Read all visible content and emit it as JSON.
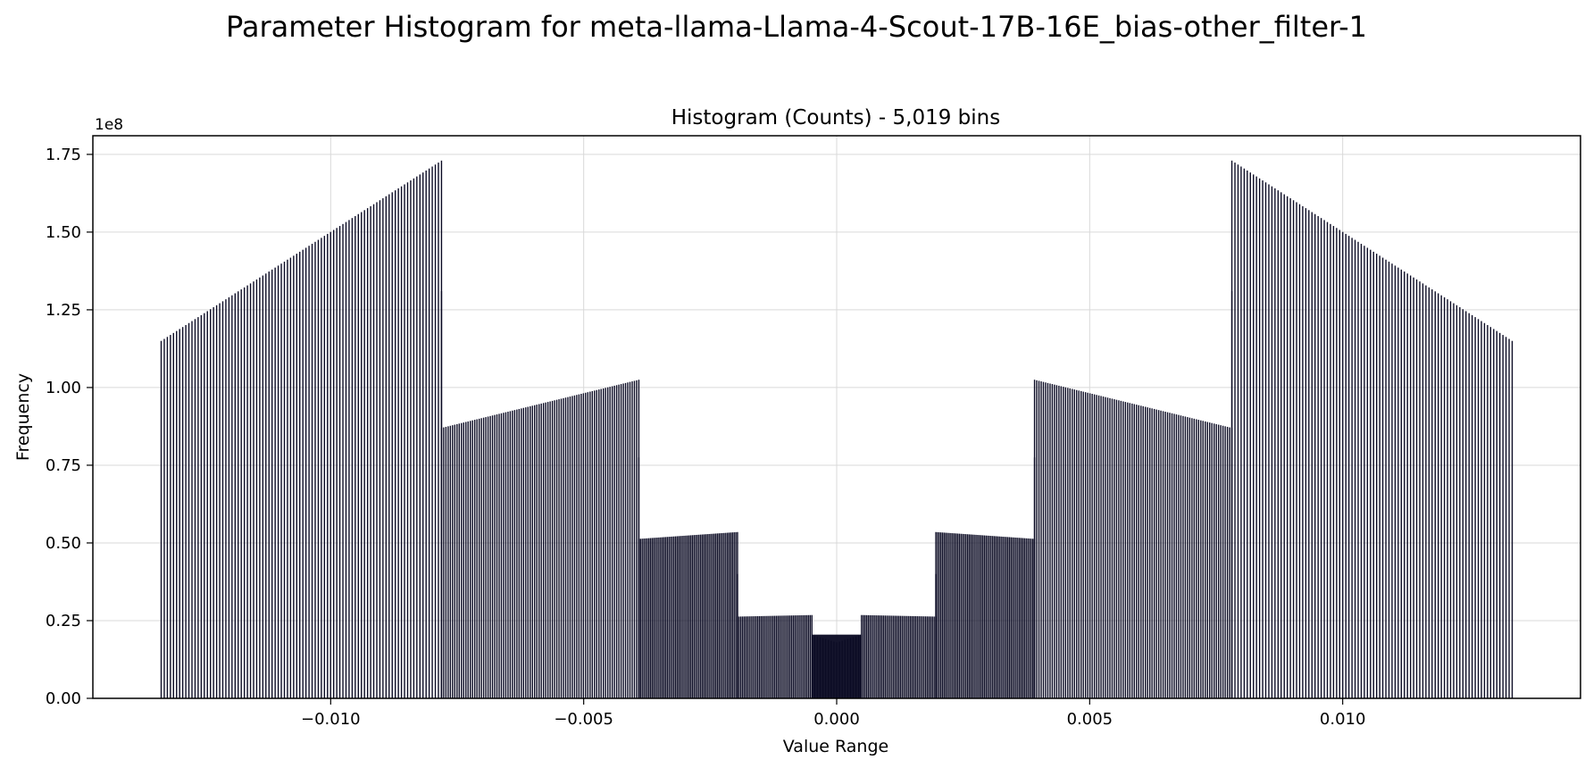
{
  "figure": {
    "suptitle": "Parameter Histogram for meta-llama-Llama-4-Scout-17B-16E_bias-other_filter-1"
  },
  "chart_data": {
    "type": "bar",
    "title": "Histogram (Counts) - 5,019 bins",
    "xlabel": "Value Range",
    "ylabel": "Frequency",
    "y_offset_label": "1e8",
    "xlim": [
      -0.0147,
      0.0147
    ],
    "ylim": [
      0,
      1.81
    ],
    "y_unit_multiplier": 100000000,
    "x_ticks": [
      -0.01,
      -0.005,
      0.0,
      0.005,
      0.01
    ],
    "x_tick_labels": [
      "−0.010",
      "−0.005",
      "0.000",
      "0.005",
      "0.010"
    ],
    "y_ticks": [
      0.0,
      0.25,
      0.5,
      0.75,
      1.0,
      1.25,
      1.5,
      1.75
    ],
    "y_tick_labels": [
      "0.00",
      "0.25",
      "0.50",
      "0.75",
      "1.00",
      "1.25",
      "1.50",
      "1.75"
    ],
    "grid": true,
    "bar_color": "#0b0b24",
    "symmetric_about_zero": true,
    "segments_positive_side": [
      {
        "x_start": 0.0,
        "x_end": 0.00049,
        "y_start": 0.18,
        "y_end": 0.205,
        "bar_count": 10
      },
      {
        "x_start": 0.00049,
        "x_end": 0.00196,
        "y_start": 0.268,
        "y_end": 0.263,
        "bar_count": 45
      },
      {
        "x_start": 0.00196,
        "x_end": 0.00391,
        "y_start": 0.535,
        "y_end": 0.513,
        "bar_count": 60
      },
      {
        "x_start": 0.00391,
        "x_end": 0.00781,
        "y_start": 1.025,
        "y_end": 0.87,
        "bar_count": 90
      },
      {
        "x_start": 0.00781,
        "x_end": 0.01335,
        "y_start": 1.73,
        "y_end": 1.15,
        "bar_count": 92
      }
    ],
    "transition_bars_positive_side": [
      {
        "x": 0.00196,
        "y": 0.4
      },
      {
        "x": 0.00391,
        "y": 0.775
      },
      {
        "x": 0.00781,
        "y": 1.31
      }
    ]
  }
}
